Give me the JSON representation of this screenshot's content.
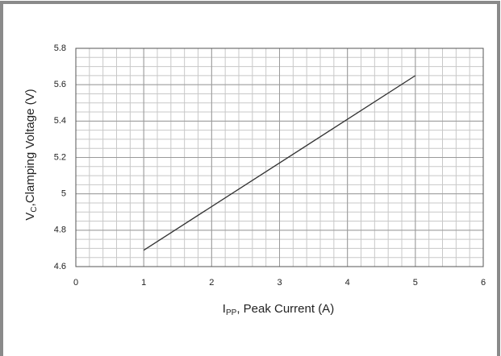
{
  "chart_data": {
    "type": "line",
    "xlabel": {
      "main": "I",
      "sub": "PP",
      "rest": ", Peak Current (A)"
    },
    "ylabel": {
      "main": "V",
      "sub": "C",
      "rest": ",Clamping Voltage (V)"
    },
    "x": [
      1,
      5
    ],
    "series": [
      {
        "color": "#333333",
        "values": [
          4.69,
          5.65
        ]
      }
    ],
    "xlim": [
      0,
      6
    ],
    "xticks": [
      0,
      1,
      2,
      3,
      4,
      5,
      6
    ],
    "ylim": [
      4.6,
      5.8
    ],
    "yticks": [
      4.6,
      4.8,
      5,
      5.2,
      5.4,
      5.6,
      5.8
    ],
    "grid": true,
    "xminor_step": 0.2,
    "yminor_step": 0.05
  }
}
